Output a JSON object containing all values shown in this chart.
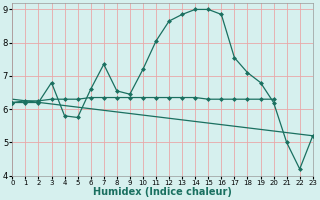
{
  "xlabel": "Humidex (Indice chaleur)",
  "xlim": [
    0,
    23
  ],
  "ylim": [
    4,
    9.2
  ],
  "yticks": [
    4,
    5,
    6,
    7,
    8,
    9
  ],
  "xticks": [
    0,
    1,
    2,
    3,
    4,
    5,
    6,
    7,
    8,
    9,
    10,
    11,
    12,
    13,
    14,
    15,
    16,
    17,
    18,
    19,
    20,
    21,
    22,
    23
  ],
  "bg_color": "#d6f0ee",
  "grid_color": "#e8a8a8",
  "line_color": "#1a7060",
  "curve_x": [
    0,
    1,
    2,
    3,
    4,
    5,
    6,
    7,
    8,
    9,
    10,
    11,
    12,
    13,
    14,
    15,
    16,
    17,
    18,
    19,
    20,
    21,
    22,
    23
  ],
  "curve_y": [
    6.2,
    6.2,
    6.2,
    6.8,
    5.8,
    5.75,
    6.6,
    7.35,
    6.55,
    6.45,
    7.2,
    8.05,
    8.65,
    8.85,
    9.0,
    9.0,
    8.85,
    7.55,
    7.1,
    6.8,
    6.2,
    5.0,
    4.2,
    5.2
  ],
  "flat_x": [
    0,
    1,
    2,
    3,
    4,
    5,
    6,
    7,
    8,
    9,
    10,
    11,
    12,
    13,
    14,
    15,
    16,
    17,
    18,
    19,
    20
  ],
  "flat_y": [
    6.2,
    6.25,
    6.25,
    6.3,
    6.3,
    6.3,
    6.35,
    6.35,
    6.35,
    6.35,
    6.35,
    6.35,
    6.35,
    6.35,
    6.35,
    6.3,
    6.3,
    6.3,
    6.3,
    6.3,
    6.3
  ],
  "decline_x": [
    0,
    23
  ],
  "decline_y": [
    6.3,
    5.2
  ],
  "marker_size": 2.5,
  "line_width": 0.9,
  "xlabel_fontsize": 7,
  "tick_fontsize_x": 5,
  "tick_fontsize_y": 6
}
